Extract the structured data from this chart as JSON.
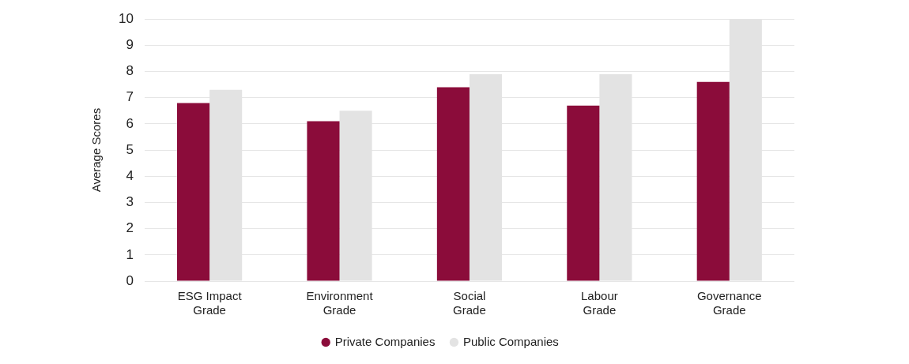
{
  "chart_data": {
    "type": "bar",
    "ylabel": "Average Scores",
    "categories": [
      "ESG Impact Grade",
      "Environment Grade",
      "Social Grade",
      "Labour Grade",
      "Governance Grade"
    ],
    "series": [
      {
        "name": "Private Companies",
        "color": "#8b0c3a",
        "values": [
          6.8,
          6.1,
          7.4,
          6.7,
          7.6
        ]
      },
      {
        "name": "Public Companies",
        "color": "#e3e3e3",
        "values": [
          7.3,
          6.5,
          7.9,
          7.9,
          10.0
        ]
      }
    ],
    "ylim": [
      0,
      10
    ],
    "yticks": [
      0,
      1,
      2,
      3,
      4,
      5,
      6,
      7,
      8,
      9,
      10
    ],
    "grid": "y",
    "legend": "bottom"
  }
}
